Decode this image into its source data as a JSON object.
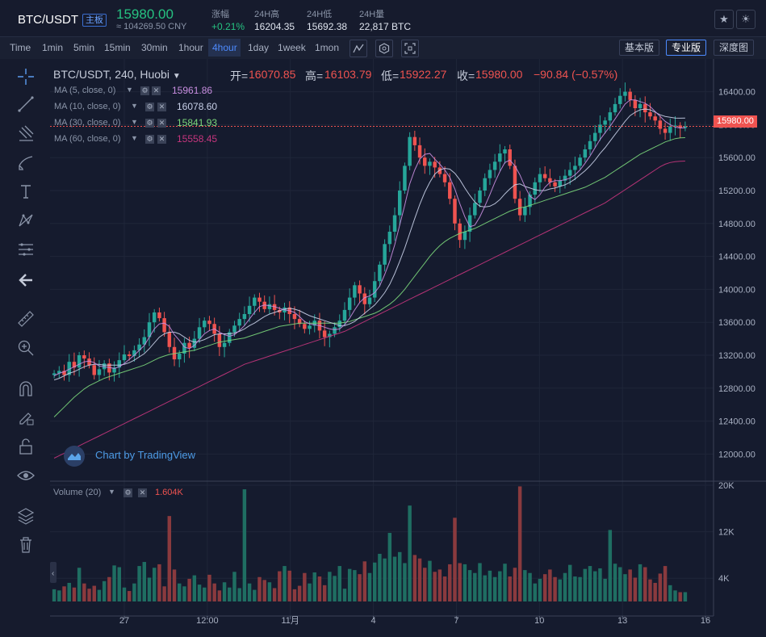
{
  "header": {
    "pair": "BTC/USDT",
    "badge": "主板",
    "price": "15980.00",
    "cny": "≈ 104269.50 CNY",
    "stats": [
      {
        "label": "涨幅",
        "value": "+0.21%"
      },
      {
        "label": "24H高",
        "value": "16204.35"
      },
      {
        "label": "24H低",
        "value": "15692.38"
      },
      {
        "label": "24H量",
        "value": "22,817 BTC"
      }
    ]
  },
  "toolbar": {
    "intervals": [
      "Time",
      "1min",
      "5min",
      "15min",
      "30min",
      "1hour",
      "4hour",
      "1day",
      "1week",
      "1mon"
    ],
    "active_interval": "4hour",
    "views": [
      "基本版",
      "专业版",
      "深度图"
    ],
    "active_view": "专业版"
  },
  "legend": {
    "symbol": "BTC/USDT, 240, Huobi",
    "open_label": "开=",
    "open": "16070.85",
    "high_label": "高=",
    "high": "16103.79",
    "low_label": "低=",
    "low": "15922.27",
    "close_label": "收=",
    "close": "15980.00",
    "change": "−90.84 (−0.57%)",
    "ma": [
      {
        "label": "MA (5, close, 0)",
        "value": "15961.86",
        "color": "#c88ee0"
      },
      {
        "label": "MA (10, close, 0)",
        "value": "16078.60",
        "color": "#c8d0e8"
      },
      {
        "label": "MA (30, close, 0)",
        "value": "15841.93",
        "color": "#7bd77b"
      },
      {
        "label": "MA (60, close, 0)",
        "value": "15558.45",
        "color": "#c5357d"
      }
    ],
    "volume_label": "Volume (20)",
    "volume_value": "1.604K",
    "watermark": "Chart by TradingView"
  },
  "chart_data": {
    "type": "candlestick",
    "price_axis_ticks": [
      "16400.00",
      "16000.00",
      "15600.00",
      "15200.00",
      "14800.00",
      "14400.00",
      "14000.00",
      "13600.00",
      "13200.00",
      "12800.00",
      "12400.00",
      "12000.00"
    ],
    "price_ylim": [
      11700,
      16700
    ],
    "last_price": "15980.00",
    "volume_axis_ticks": [
      "20K",
      "12K",
      "4K"
    ],
    "volume_ylim": [
      0,
      20000
    ],
    "time_ticks": [
      "27",
      "12:00",
      "11月",
      "4",
      "7",
      "10",
      "13",
      "16"
    ],
    "colors": {
      "up": "#26a69a",
      "down": "#ef5350"
    },
    "closes": [
      12980,
      13010,
      12960,
      13120,
      13050,
      13200,
      13160,
      13080,
      12960,
      13030,
      13100,
      12990,
      13050,
      13140,
      13210,
      13190,
      13260,
      13330,
      13420,
      13600,
      13720,
      13650,
      13480,
      13300,
      13150,
      13220,
      13350,
      13290,
      13400,
      13540,
      13620,
      13580,
      13460,
      13300,
      13350,
      13480,
      13560,
      13640,
      13700,
      13800,
      13900,
      13850,
      13760,
      13820,
      13750,
      13720,
      13780,
      13700,
      13640,
      13580,
      13520,
      13560,
      13620,
      13500,
      13420,
      13460,
      13540,
      13620,
      13750,
      13900,
      14050,
      13950,
      13820,
      13900,
      14100,
      14300,
      14550,
      14700,
      14900,
      15200,
      15500,
      15850,
      15750,
      15600,
      15500,
      15550,
      15480,
      15400,
      15300,
      15100,
      14800,
      14600,
      14700,
      14900,
      15050,
      15200,
      15350,
      15450,
      15550,
      15650,
      15700,
      15500,
      15100,
      14900,
      15000,
      15150,
      15300,
      15400,
      15350,
      15300,
      15250,
      15320,
      15380,
      15450,
      15500,
      15600,
      15700,
      15800,
      15900,
      16000,
      16050,
      16150,
      16250,
      16350,
      16400,
      16300,
      16200,
      16250,
      16150,
      16100,
      16050,
      15950,
      15900,
      15980,
      15990,
      15960,
      15980
    ],
    "ma5": [
      12950,
      12980,
      13000,
      13030,
      13060,
      13090,
      13120,
      13130,
      13110,
      13070,
      13060,
      13050,
      13040,
      13060,
      13100,
      13150,
      13200,
      13260,
      13320,
      13420,
      13520,
      13580,
      13590,
      13550,
      13450,
      13380,
      13300,
      13280,
      13320,
      13390,
      13460,
      13500,
      13520,
      13480,
      13450,
      13430,
      13450,
      13500,
      13560,
      13640,
      13720,
      13790,
      13810,
      13800,
      13790,
      13770,
      13750,
      13740,
      13720,
      13670,
      13610,
      13580,
      13570,
      13560,
      13540,
      13520,
      13510,
      13520,
      13570,
      13650,
      13750,
      13840,
      13900,
      13920,
      13960,
      14040,
      14180,
      14340,
      14540,
      14780,
      15020,
      15280,
      15450,
      15580,
      15640,
      15650,
      15580,
      15520,
      15450,
      15360,
      15220,
      15040,
      14880,
      14760,
      14780,
      14880,
      15010,
      15150,
      15300,
      15430,
      15540,
      15570,
      15500,
      15390,
      15250,
      15130,
      15090,
      15150,
      15240,
      15300,
      15320,
      15320,
      15330,
      15350,
      15390,
      15450,
      15530,
      15620,
      15720,
      15820,
      15900,
      15980,
      16070,
      16160,
      16250,
      16300,
      16300,
      16280,
      16260,
      16220,
      16160,
      16100,
      16040,
      16000,
      15970,
      15960,
      15962
    ],
    "ma10": [
      12900,
      12920,
      12950,
      12980,
      13000,
      13030,
      13060,
      13080,
      13090,
      13090,
      13080,
      13080,
      13080,
      13080,
      13090,
      13110,
      13140,
      13180,
      13220,
      13280,
      13350,
      13420,
      13460,
      13480,
      13480,
      13460,
      13420,
      13380,
      13360,
      13370,
      13390,
      13420,
      13450,
      13460,
      13460,
      13460,
      13470,
      13490,
      13520,
      13560,
      13590,
      13630,
      13670,
      13700,
      13720,
      13740,
      13760,
      13770,
      13760,
      13740,
      13710,
      13680,
      13660,
      13640,
      13620,
      13600,
      13580,
      13560,
      13560,
      13580,
      13610,
      13660,
      13710,
      13760,
      13810,
      13880,
      13960,
      14060,
      14190,
      14340,
      14500,
      14680,
      14860,
      15030,
      15180,
      15300,
      15400,
      15450,
      15470,
      15460,
      15410,
      15330,
      15230,
      15140,
      15060,
      15010,
      15000,
      15010,
      15040,
      15090,
      15160,
      15220,
      15270,
      15280,
      15250,
      15230,
      15210,
      15200,
      15200,
      15220,
      15230,
      15250,
      15270,
      15300,
      15340,
      15390,
      15440,
      15500,
      15570,
      15650,
      15720,
      15800,
      15880,
      15960,
      16040,
      16110,
      16150,
      16180,
      16190,
      16180,
      16150,
      16120,
      16100,
      16090,
      16080,
      16078,
      16079
    ],
    "ma30": [
      12450,
      12510,
      12570,
      12630,
      12690,
      12740,
      12790,
      12830,
      12860,
      12890,
      12920,
      12940,
      12960,
      12980,
      13000,
      13020,
      13040,
      13060,
      13080,
      13110,
      13140,
      13170,
      13190,
      13210,
      13220,
      13230,
      13240,
      13250,
      13260,
      13280,
      13300,
      13320,
      13340,
      13360,
      13370,
      13380,
      13390,
      13400,
      13410,
      13430,
      13450,
      13470,
      13490,
      13510,
      13530,
      13550,
      13560,
      13570,
      13580,
      13590,
      13590,
      13590,
      13590,
      13590,
      13590,
      13590,
      13590,
      13590,
      13600,
      13610,
      13630,
      13650,
      13670,
      13690,
      13710,
      13740,
      13780,
      13820,
      13870,
      13930,
      14000,
      14080,
      14160,
      14240,
      14320,
      14400,
      14470,
      14530,
      14580,
      14620,
      14650,
      14680,
      14700,
      14720,
      14740,
      14770,
      14800,
      14830,
      14860,
      14890,
      14920,
      14950,
      14970,
      14990,
      15000,
      15020,
      15040,
      15060,
      15080,
      15100,
      15120,
      15140,
      15160,
      15180,
      15200,
      15220,
      15240,
      15270,
      15300,
      15330,
      15360,
      15400,
      15440,
      15480,
      15520,
      15560,
      15600,
      15640,
      15670,
      15700,
      15730,
      15760,
      15790,
      15810,
      15830,
      15840,
      15842
    ],
    "ma60": [
      11950,
      11980,
      12010,
      12040,
      12070,
      12100,
      12130,
      12160,
      12190,
      12220,
      12250,
      12280,
      12310,
      12340,
      12370,
      12400,
      12430,
      12460,
      12490,
      12520,
      12550,
      12580,
      12610,
      12640,
      12670,
      12700,
      12730,
      12760,
      12790,
      12820,
      12850,
      12880,
      12910,
      12940,
      12970,
      13000,
      13030,
      13060,
      13090,
      13110,
      13130,
      13150,
      13170,
      13190,
      13210,
      13230,
      13250,
      13270,
      13290,
      13310,
      13330,
      13350,
      13370,
      13390,
      13410,
      13430,
      13450,
      13470,
      13490,
      13520,
      13550,
      13580,
      13610,
      13640,
      13670,
      13700,
      13730,
      13760,
      13790,
      13820,
      13850,
      13880,
      13910,
      13940,
      13970,
      14000,
      14030,
      14060,
      14090,
      14120,
      14150,
      14180,
      14210,
      14240,
      14270,
      14300,
      14330,
      14360,
      14390,
      14420,
      14450,
      14480,
      14510,
      14540,
      14570,
      14600,
      14630,
      14660,
      14690,
      14720,
      14750,
      14780,
      14810,
      14840,
      14870,
      14900,
      14930,
      14960,
      14990,
      15020,
      15050,
      15090,
      15130,
      15170,
      15210,
      15250,
      15290,
      15330,
      15370,
      15410,
      15450,
      15490,
      15520,
      15540,
      15550,
      15555,
      15558
    ],
    "volumes": [
      2100,
      1900,
      2600,
      3200,
      2400,
      5800,
      3100,
      2200,
      2700,
      2000,
      3500,
      4200,
      6200,
      5900,
      2400,
      1800,
      3100,
      6100,
      6800,
      4100,
      5800,
      6400,
      2600,
      14700,
      5500,
      3100,
      2600,
      3900,
      4500,
      2900,
      2400,
      4600,
      3100,
      1900,
      3300,
      2400,
      5100,
      2300,
      19300,
      3100,
      2000,
      4200,
      3700,
      3300,
      2300,
      5200,
      6100,
      5300,
      2100,
      2700,
      4900,
      3100,
      5000,
      4300,
      2800,
      5100,
      4400,
      6100,
      2200,
      5600,
      5400,
      4700,
      6900,
      4900,
      6700,
      8200,
      7400,
      11800,
      7700,
      8500,
      6600,
      16500,
      8000,
      7400,
      5800,
      7000,
      5100,
      5500,
      4300,
      6400,
      14400,
      6600,
      6400,
      5400,
      4900,
      6600,
      4500,
      5300,
      4200,
      5200,
      6500,
      4300,
      5800,
      19800,
      5400,
      4900,
      3100,
      3900,
      4700,
      5500,
      4200,
      3800,
      4900,
      6300,
      4300,
      4200,
      5600,
      6100,
      5200,
      5700,
      3900,
      12300,
      6500,
      5900,
      4700,
      5500,
      4100,
      6400,
      5900,
      3800,
      3200,
      4800,
      6100,
      2800,
      1900,
      1600,
      1604
    ]
  }
}
